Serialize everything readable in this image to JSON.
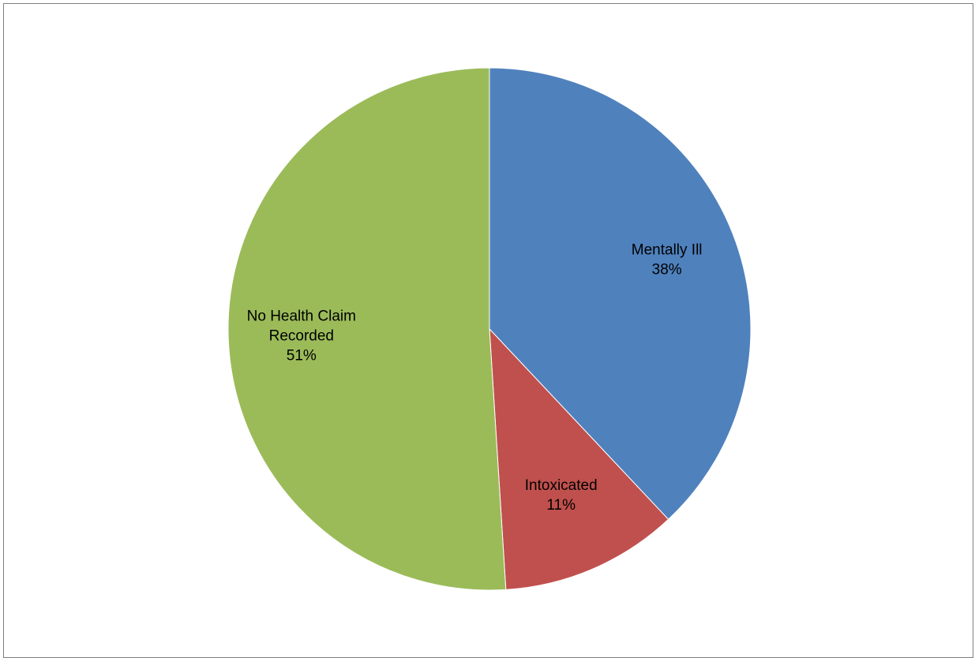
{
  "chart_data": {
    "type": "pie",
    "title": "",
    "start_angle_deg": 0,
    "direction": "clockwise",
    "slices": [
      {
        "category": "Mentally Ill",
        "value": 38,
        "percent_label": "38%",
        "color": "#4F81BD"
      },
      {
        "category": "Intoxicated",
        "value": 11,
        "percent_label": "11%",
        "color": "#C0504D"
      },
      {
        "category": "No Health Claim Recorded",
        "value": 51,
        "percent_label": "51%",
        "color": "#9BBB59"
      }
    ],
    "data_labels": "category and percentage, inside slices",
    "legend": "none"
  }
}
